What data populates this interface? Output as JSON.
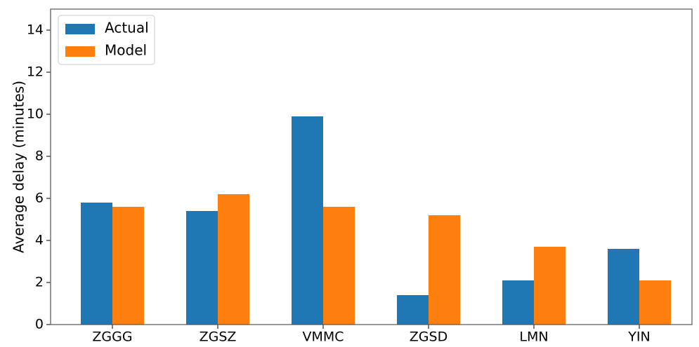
{
  "chart_data": {
    "type": "bar",
    "y_label": "Average delay (minutes)",
    "categories": [
      "ZGGG",
      "ZGSZ",
      "VMMC",
      "ZGSD",
      "LMN",
      "YIN"
    ],
    "series": [
      {
        "name": "Actual",
        "color": "#1f77b4",
        "values": [
          5.8,
          5.4,
          9.9,
          1.4,
          2.1,
          3.6
        ]
      },
      {
        "name": "Model",
        "color": "#ff7f0e",
        "values": [
          5.6,
          6.2,
          5.6,
          5.2,
          3.7,
          2.1
        ]
      }
    ],
    "ylim": [
      0,
      15
    ],
    "yticks": [
      0,
      2,
      4,
      6,
      8,
      10,
      12,
      14
    ],
    "grid": false,
    "legend": "upper left"
  }
}
